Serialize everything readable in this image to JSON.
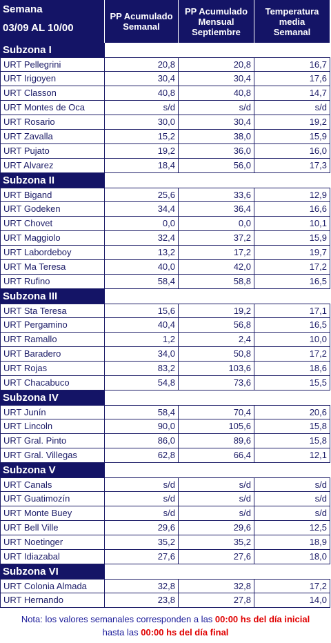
{
  "header": {
    "week_label": "Semana",
    "week_range": "03/09 AL 10/00",
    "columns": [
      [
        "PP Acumulado",
        "Semanal"
      ],
      [
        "PP Acumulado",
        "Mensual",
        "Septiembre"
      ],
      [
        "Temperatura",
        "media",
        "Semanal"
      ]
    ]
  },
  "sections": [
    {
      "title": "Subzona I",
      "rows": [
        [
          "URT Pellegrini",
          "20,8",
          "20,8",
          "16,7"
        ],
        [
          "URT Irigoyen",
          "30,4",
          "30,4",
          "17,6"
        ],
        [
          "URT Classon",
          "40,8",
          "40,8",
          "14,7"
        ],
        [
          "URT Montes de Oca",
          "s/d",
          "s/d",
          "s/d"
        ],
        [
          "URT Rosario",
          "30,0",
          "30,4",
          "19,2"
        ],
        [
          "URT Zavalla",
          "15,2",
          "38,0",
          "15,9"
        ],
        [
          "URT Pujato",
          "19,2",
          "36,0",
          "16,0"
        ],
        [
          "URT Alvarez",
          "18,4",
          "56,0",
          "17,3"
        ]
      ]
    },
    {
      "title": "Subzona II",
      "rows": [
        [
          "URT Bigand",
          "25,6",
          "33,6",
          "12,9"
        ],
        [
          "URT Godeken",
          "34,4",
          "36,4",
          "16,6"
        ],
        [
          "URT Chovet",
          "0,0",
          "0,0",
          "10,1"
        ],
        [
          "URT Maggiolo",
          "32,4",
          "37,2",
          "15,9"
        ],
        [
          "URT Labordeboy",
          "13,2",
          "17,2",
          "19,7"
        ],
        [
          "URT Ma Teresa",
          "40,0",
          "42,0",
          "17,2"
        ],
        [
          "URT Rufino",
          "58,4",
          "58,8",
          "16,5"
        ]
      ]
    },
    {
      "title": "Subzona III",
      "rows": [
        [
          "URT Sta Teresa",
          "15,6",
          "19,2",
          "17,1"
        ],
        [
          "URT Pergamino",
          "40,4",
          "56,8",
          "16,5"
        ],
        [
          "URT Ramallo",
          "1,2",
          "2,4",
          "10,0"
        ],
        [
          "URT Baradero",
          "34,0",
          "50,8",
          "17,2"
        ],
        [
          "URT Rojas",
          "83,2",
          "103,6",
          "18,6"
        ],
        [
          "URT Chacabuco",
          "54,8",
          "73,6",
          "15,5"
        ]
      ]
    },
    {
      "title": "Subzona IV",
      "rows": [
        [
          "URT Junín",
          "58,4",
          "70,4",
          "20,6"
        ],
        [
          "URT Lincoln",
          "90,0",
          "105,6",
          "15,8"
        ],
        [
          "URT Gral. Pinto",
          "86,0",
          "89,6",
          "15,8"
        ],
        [
          "URT Gral. Villegas",
          "62,8",
          "66,4",
          "12,1"
        ]
      ]
    },
    {
      "title": "Subzona V",
      "rows": [
        [
          "URT Canals",
          "s/d",
          "s/d",
          "s/d"
        ],
        [
          "URT Guatimozín",
          "s/d",
          "s/d",
          "s/d"
        ],
        [
          "URT Monte Buey",
          "s/d",
          "s/d",
          "s/d"
        ],
        [
          "URT Bell Ville",
          "29,6",
          "29,6",
          "12,5"
        ],
        [
          "URT Noetinger",
          "35,2",
          "35,2",
          "18,9"
        ],
        [
          "URT Idiazabal",
          "27,6",
          "27,6",
          "18,0"
        ]
      ]
    },
    {
      "title": "Subzona VI",
      "rows": [
        [
          "URT Colonia Almada",
          "32,8",
          "32,8",
          "17,2"
        ],
        [
          "URT Hernando",
          "23,8",
          "27,8",
          "14,0"
        ]
      ]
    }
  ],
  "note": {
    "line1": [
      "Nota: los valores semanales corresponden a las ",
      "00:00 hs del día inicial"
    ],
    "line2": [
      "hasta las ",
      "00:00 hs del día final"
    ]
  }
}
